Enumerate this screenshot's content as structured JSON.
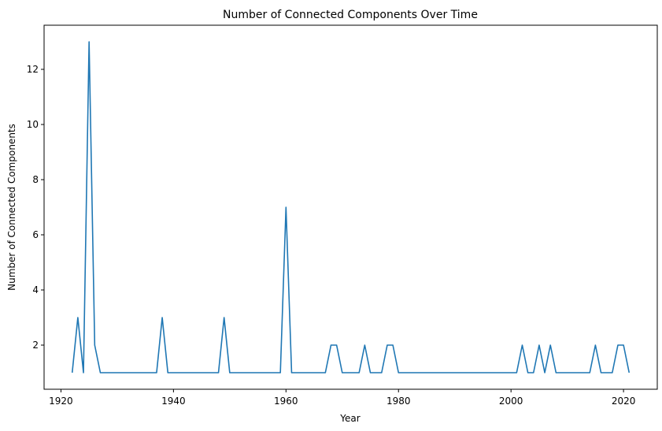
{
  "chart_data": {
    "type": "line",
    "title": "Number of Connected Components Over Time",
    "xlabel": "Year",
    "ylabel": "Number of Connected Components",
    "xlim": [
      1917,
      2026
    ],
    "ylim": [
      0.4,
      13.6
    ],
    "xticks": [
      1920,
      1940,
      1960,
      1980,
      2000,
      2020
    ],
    "yticks": [
      2,
      4,
      6,
      8,
      10,
      12
    ],
    "grid": false,
    "color": "#1f77b4",
    "series": [
      {
        "x": [
          1922,
          1923,
          1924,
          1925,
          1926,
          1927,
          1928,
          1929,
          1930,
          1931,
          1932,
          1933,
          1934,
          1935,
          1936,
          1937,
          1938,
          1939,
          1940,
          1941,
          1942,
          1943,
          1944,
          1945,
          1946,
          1947,
          1948,
          1949,
          1950,
          1951,
          1952,
          1953,
          1954,
          1955,
          1956,
          1957,
          1958,
          1959,
          1960,
          1961,
          1962,
          1963,
          1964,
          1965,
          1966,
          1967,
          1968,
          1969,
          1970,
          1971,
          1972,
          1973,
          1974,
          1975,
          1976,
          1977,
          1978,
          1979,
          1980,
          1981,
          1982,
          1983,
          1984,
          1985,
          1986,
          1987,
          1988,
          1989,
          1990,
          1991,
          1992,
          1993,
          1994,
          1995,
          1996,
          1997,
          1998,
          1999,
          2000,
          2001,
          2002,
          2003,
          2004,
          2005,
          2006,
          2007,
          2008,
          2009,
          2010,
          2011,
          2012,
          2013,
          2014,
          2015,
          2016,
          2017,
          2018,
          2019,
          2020,
          2021
        ],
        "y": [
          1,
          3,
          1,
          13,
          2,
          1,
          1,
          1,
          1,
          1,
          1,
          1,
          1,
          1,
          1,
          1,
          3,
          1,
          1,
          1,
          1,
          1,
          1,
          1,
          1,
          1,
          1,
          3,
          1,
          1,
          1,
          1,
          1,
          1,
          1,
          1,
          1,
          1,
          7,
          1,
          1,
          1,
          1,
          1,
          1,
          1,
          2,
          2,
          1,
          1,
          1,
          1,
          2,
          1,
          1,
          1,
          2,
          2,
          1,
          1,
          1,
          1,
          1,
          1,
          1,
          1,
          1,
          1,
          1,
          1,
          1,
          1,
          1,
          1,
          1,
          1,
          1,
          1,
          1,
          1,
          2,
          1,
          1,
          2,
          1,
          2,
          1,
          1,
          1,
          1,
          1,
          1,
          1,
          2,
          1,
          1,
          1,
          2,
          2,
          1
        ]
      }
    ]
  }
}
